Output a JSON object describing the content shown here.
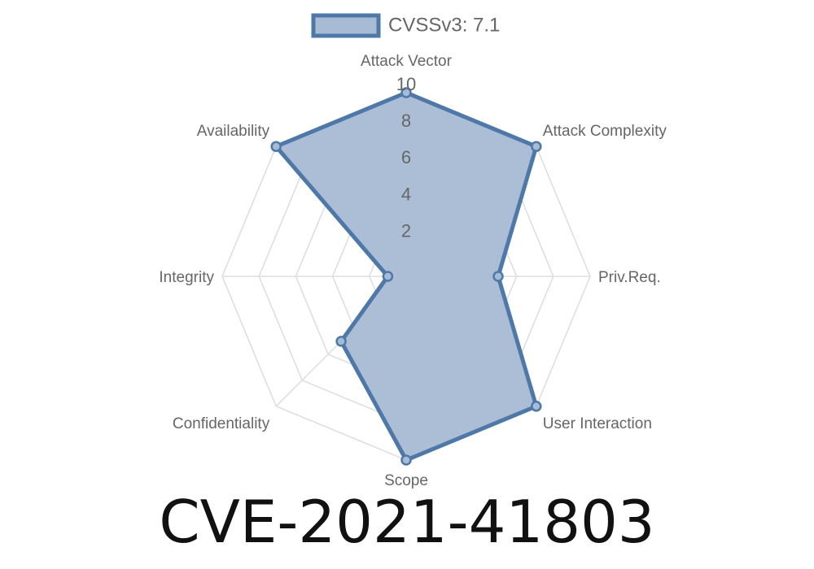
{
  "chart_data": {
    "type": "radar",
    "axes": [
      "Attack Vector",
      "Attack Complexity",
      "Priv.Req.",
      "User Interaction",
      "Scope",
      "Confidentiality",
      "Integrity",
      "Availability"
    ],
    "series": [
      {
        "name": "CVSSv3: 7.1",
        "values": [
          10,
          10,
          5,
          10,
          10,
          5,
          1,
          10
        ]
      }
    ],
    "range": [
      0,
      10
    ],
    "ticks": [
      "2",
      "4",
      "6",
      "8",
      "10"
    ],
    "tick_values": [
      2,
      4,
      6,
      8,
      10
    ],
    "grid": true,
    "legend": "top",
    "colors": {
      "fill": "#a7bbd4",
      "stroke": "#4e78a8",
      "grid": "#dddddd"
    }
  },
  "title": "CVE-2021-41803"
}
